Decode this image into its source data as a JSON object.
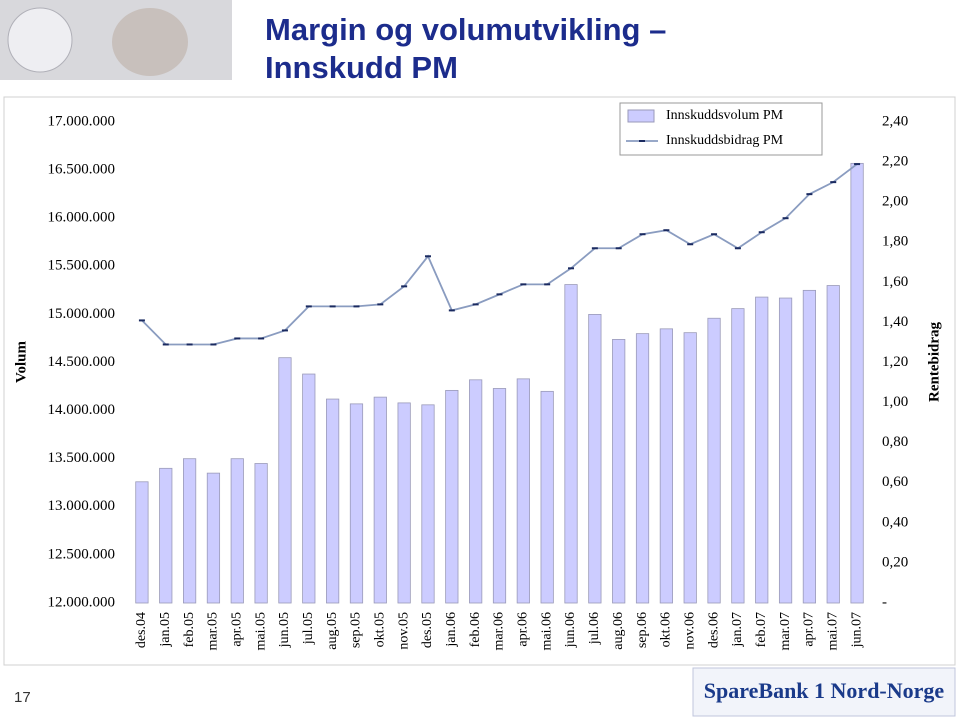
{
  "slide": {
    "title_lines": [
      "Margin og volumutvikling –",
      "Innskudd PM"
    ],
    "page_number": "17",
    "logo": "SpareBank 1 Nord-Norge"
  },
  "chart_data": {
    "type": "bar-line",
    "y_label": "Volum",
    "y2_label": "Rentebidrag",
    "categories": [
      "des.04",
      "jan.05",
      "feb.05",
      "mar.05",
      "apr.05",
      "mai.05",
      "jun.05",
      "jul.05",
      "aug.05",
      "sep.05",
      "okt.05",
      "nov.05",
      "des.05",
      "jan.06",
      "feb.06",
      "mar.06",
      "apr.06",
      "mai.06",
      "jun.06",
      "jul.06",
      "aug.06",
      "sep.06",
      "okt.06",
      "nov.06",
      "des.06",
      "jan.07",
      "feb.07",
      "mar.07",
      "apr.07",
      "mai.07",
      "jun.07"
    ],
    "series": [
      {
        "name": "Innskuddsvolum PM",
        "type": "bar",
        "color": "#ccccff",
        "values": [
          13260000,
          13400000,
          13500000,
          13350000,
          13500000,
          13450000,
          14550000,
          14380000,
          14120000,
          14070000,
          14140000,
          14080000,
          14060000,
          14210000,
          14320000,
          14230000,
          14330000,
          14200000,
          15310000,
          15000000,
          14740000,
          14800000,
          14850000,
          14810000,
          14960000,
          15060000,
          15180000,
          15170000,
          15250000,
          15300000,
          16570000
        ]
      },
      {
        "name": "Innskuddsbidrag PM",
        "type": "line",
        "axis": "y2",
        "color": "#8a9cc0",
        "values": [
          1.41,
          1.29,
          1.29,
          1.29,
          1.32,
          1.32,
          1.36,
          1.48,
          1.48,
          1.48,
          1.49,
          1.58,
          1.73,
          1.46,
          1.49,
          1.54,
          1.59,
          1.59,
          1.67,
          1.77,
          1.77,
          1.84,
          1.86,
          1.79,
          1.84,
          1.77,
          1.85,
          1.92,
          2.04,
          2.1,
          2.19
        ]
      }
    ],
    "ylim": [
      12000000,
      17000000
    ],
    "yticks": [
      {
        "value": 12000000,
        "label": "12.000.000"
      },
      {
        "value": 12500000,
        "label": "12.500.000"
      },
      {
        "value": 13000000,
        "label": "13.000.000"
      },
      {
        "value": 13500000,
        "label": "13.500.000"
      },
      {
        "value": 14000000,
        "label": "14.000.000"
      },
      {
        "value": 14500000,
        "label": "14.500.000"
      },
      {
        "value": 15000000,
        "label": "15.000.000"
      },
      {
        "value": 15500000,
        "label": "15.500.000"
      },
      {
        "value": 16000000,
        "label": "16.000.000"
      },
      {
        "value": 16500000,
        "label": "16.500.000"
      },
      {
        "value": 17000000,
        "label": "17.000.000"
      }
    ],
    "y2lim": [
      0,
      2.4
    ],
    "y2ticks": [
      {
        "value": 0,
        "label": "-"
      },
      {
        "value": 0.2,
        "label": "0,20"
      },
      {
        "value": 0.4,
        "label": "0,40"
      },
      {
        "value": 0.6,
        "label": "0,60"
      },
      {
        "value": 0.8,
        "label": "0,80"
      },
      {
        "value": 1.0,
        "label": "1,00"
      },
      {
        "value": 1.2,
        "label": "1,20"
      },
      {
        "value": 1.4,
        "label": "1,40"
      },
      {
        "value": 1.6,
        "label": "1,60"
      },
      {
        "value": 1.8,
        "label": "1,80"
      },
      {
        "value": 2.0,
        "label": "2,00"
      },
      {
        "value": 2.2,
        "label": "2,20"
      },
      {
        "value": 2.4,
        "label": "2,40"
      }
    ],
    "legend": "top-right"
  }
}
